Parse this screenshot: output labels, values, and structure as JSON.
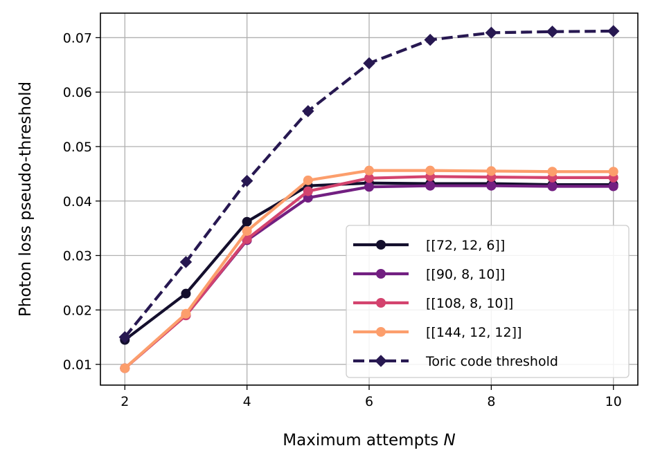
{
  "chart_data": {
    "type": "line",
    "xlabel": "Maximum attempts",
    "xlabel_var": "N",
    "ylabel": "Photon loss pseudo-threshold",
    "xlim": [
      1.6,
      10.4
    ],
    "ylim": [
      0.0062,
      0.0745
    ],
    "xticks": [
      2,
      4,
      6,
      8,
      10
    ],
    "yticks": [
      0.01,
      0.02,
      0.03,
      0.04,
      0.05,
      0.06,
      0.07
    ],
    "ytick_labels": [
      "0.01",
      "0.02",
      "0.03",
      "0.04",
      "0.05",
      "0.06",
      "0.07"
    ],
    "grid": true,
    "legend_position": "lower-right",
    "x": [
      2,
      3,
      4,
      5,
      6,
      7,
      8,
      9,
      10
    ],
    "series": [
      {
        "name": "[[72, 12, 6]]",
        "color": "#140f2d",
        "marker": "circle",
        "dash": "solid",
        "values": [
          0.0145,
          0.023,
          0.0362,
          0.0428,
          0.0433,
          0.0432,
          0.0432,
          0.043,
          0.043
        ]
      },
      {
        "name": "[[90, 8, 10]]",
        "color": "#721f81",
        "marker": "circle",
        "dash": "solid",
        "values": [
          0.0093,
          0.019,
          0.0328,
          0.0406,
          0.0426,
          0.0428,
          0.0428,
          0.0427,
          0.0427
        ]
      },
      {
        "name": "[[108, 8, 10]]",
        "color": "#d3436e",
        "marker": "circle",
        "dash": "solid",
        "values": [
          0.0093,
          0.019,
          0.033,
          0.0418,
          0.0442,
          0.0445,
          0.0444,
          0.0443,
          0.0443
        ]
      },
      {
        "name": "[[144, 12, 12]]",
        "color": "#fc9e6c",
        "marker": "circle",
        "dash": "solid",
        "values": [
          0.0093,
          0.0193,
          0.0345,
          0.0438,
          0.0456,
          0.0456,
          0.0455,
          0.0454,
          0.0454
        ]
      },
      {
        "name": "Toric code threshold",
        "color": "#271851",
        "marker": "diamond",
        "dash": "dashed",
        "values": [
          0.015,
          0.0288,
          0.0437,
          0.0565,
          0.0653,
          0.0696,
          0.0709,
          0.0711,
          0.0712
        ]
      }
    ]
  }
}
